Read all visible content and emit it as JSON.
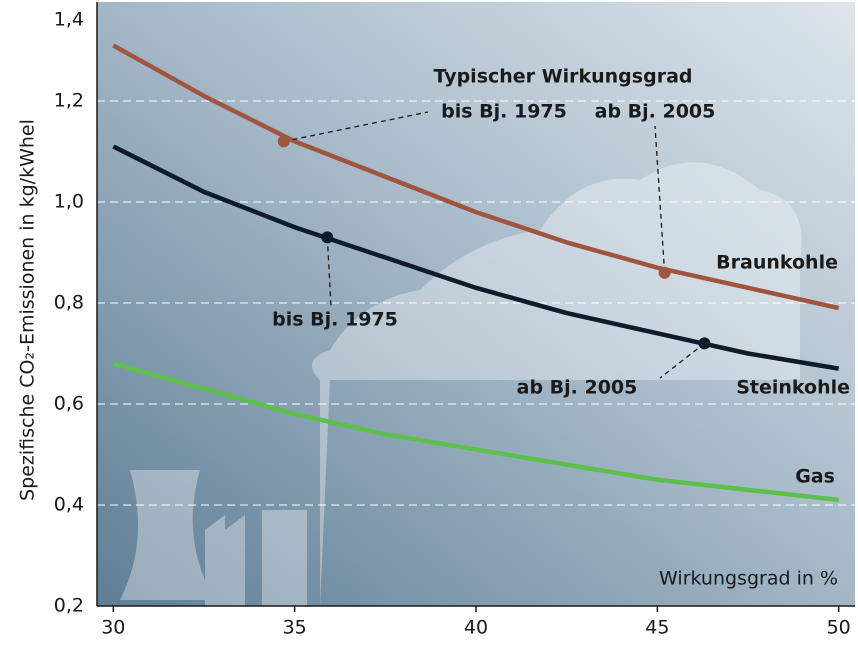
{
  "chart_data": {
    "type": "line",
    "y_label": "Spezifische CO₂-Emissionen in kg/kWhel",
    "x_label": "Wirkungsgrad in %",
    "annotation": "Typischer Wirkungsgrad",
    "x": [
      30,
      32.5,
      35,
      37.5,
      40,
      42.5,
      45,
      47.5,
      50
    ],
    "series": [
      {
        "name": "Braunkohle",
        "color": "#a0553f",
        "values": [
          1.31,
          1.21,
          1.12,
          1.05,
          0.98,
          0.92,
          0.87,
          0.83,
          0.79
        ],
        "markers": [
          {
            "x": 34.7,
            "y": 1.12,
            "label": "bis Bj. 1975"
          },
          {
            "x": 45.2,
            "y": 0.86,
            "label": "ab Bj. 2005"
          }
        ]
      },
      {
        "name": "Steinkohle",
        "color": "#0d1b2a",
        "values": [
          1.11,
          1.02,
          0.95,
          0.89,
          0.83,
          0.78,
          0.74,
          0.7,
          0.67
        ],
        "markers": [
          {
            "x": 35.9,
            "y": 0.93,
            "label": "bis Bj. 1975"
          },
          {
            "x": 46.3,
            "y": 0.72,
            "label": "ab Bj. 2005"
          }
        ]
      },
      {
        "name": "Gas",
        "color": "#5cc04a",
        "values": [
          0.68,
          0.63,
          0.58,
          0.54,
          0.51,
          0.48,
          0.45,
          0.43,
          0.41
        ]
      }
    ],
    "xlim": [
      29.55,
      50.45
    ],
    "ylim": [
      0.2,
      1.4
    ],
    "xticks": [
      30,
      35,
      40,
      45,
      50
    ],
    "yticks": [
      {
        "value": 0.2,
        "label": "0,2"
      },
      {
        "value": 0.4,
        "label": "0,4"
      },
      {
        "value": 0.6,
        "label": "0,6"
      },
      {
        "value": 0.8,
        "label": "0,8"
      },
      {
        "value": 1.0,
        "label": "1,0"
      },
      {
        "value": 1.2,
        "label": "1,2"
      },
      {
        "value": 1.4,
        "label": "1,4"
      }
    ],
    "grid": true
  }
}
